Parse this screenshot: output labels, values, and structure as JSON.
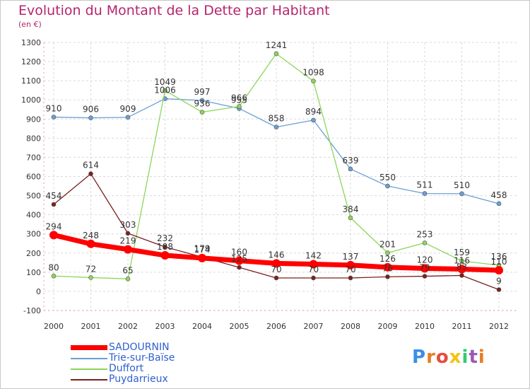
{
  "title": "Evolution du Montant de la Dette par Habitant",
  "unit_label": "(en €)",
  "logo_text": "Proxiti",
  "chart_data": {
    "type": "line",
    "x": [
      "2000",
      "2001",
      "2002",
      "2003",
      "2004",
      "2005",
      "2006",
      "2007",
      "2008",
      "2009",
      "2010",
      "2011",
      "2012"
    ],
    "ylim": [
      -100,
      1300
    ],
    "yticks": [
      -100,
      0,
      100,
      200,
      300,
      400,
      500,
      600,
      700,
      800,
      900,
      1000,
      1100,
      1200,
      1300
    ],
    "grid": true,
    "legend_position": "bottom-left",
    "series": [
      {
        "name": "SADOURNIN",
        "color": "#ff0000",
        "width": 7,
        "values": [
          294,
          248,
          219,
          188,
          174,
          160,
          146,
          142,
          137,
          126,
          120,
          116,
          110
        ],
        "labels": [
          "294",
          "248",
          "219",
          "188",
          "174",
          "160",
          "146",
          "142",
          "137",
          "126",
          "120",
          "116",
          "110"
        ]
      },
      {
        "name": "Trie-sur-Baïse",
        "color": "#6a9fd4",
        "width": 1.3,
        "values": [
          910,
          906,
          909,
          1006,
          997,
          955,
          858,
          894,
          639,
          550,
          511,
          510,
          458
        ],
        "labels": [
          "910",
          "906",
          "909",
          "1006",
          "997",
          "955",
          "858",
          "894",
          "639",
          "550",
          "511",
          "510",
          "458"
        ]
      },
      {
        "name": "Duffort",
        "color": "#8cd65a",
        "width": 1.3,
        "values": [
          80,
          72,
          65,
          1049,
          936,
          966,
          1241,
          1098,
          384,
          201,
          253,
          159,
          136
        ],
        "labels": [
          "80",
          "72",
          "65",
          "1049",
          "936",
          "966",
          "1241",
          "1098",
          "384",
          "201",
          "253",
          "159",
          "136"
        ]
      },
      {
        "name": "Puydarrieux",
        "color": "#7a2020",
        "width": 1.3,
        "values": [
          454,
          614,
          303,
          232,
          179,
          125,
          70,
          70,
          70,
          76,
          79,
          83,
          9
        ],
        "labels": [
          "454",
          "614",
          "303",
          "232",
          "179",
          "125",
          "70",
          "70",
          "70",
          "76",
          "79",
          "83",
          "9"
        ]
      }
    ]
  }
}
